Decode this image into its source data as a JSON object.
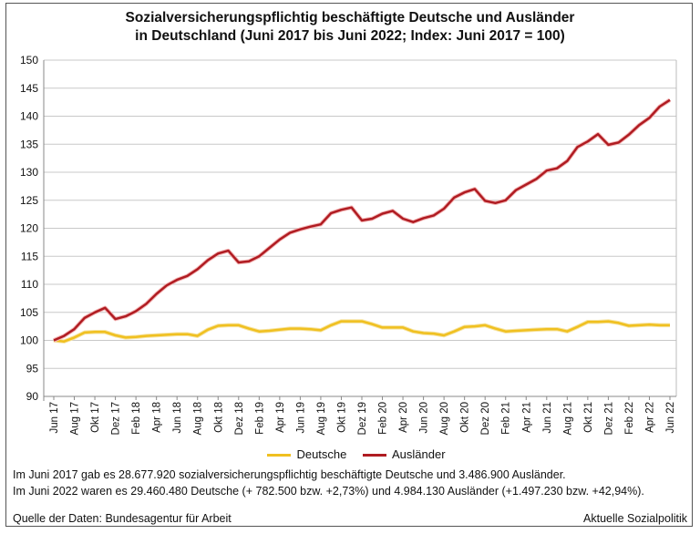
{
  "chart_data": {
    "type": "line",
    "title": "Sozialversicherungspflichtig beschäftigte Deutsche und Ausländer",
    "subtitle": "in Deutschland (Juni 2017 bis Juni 2022; Index: Juni 2017 = 100)",
    "ylim": [
      90,
      150
    ],
    "yticks": [
      90,
      95,
      100,
      105,
      110,
      115,
      120,
      125,
      130,
      135,
      140,
      145,
      150
    ],
    "grid": true,
    "legend": "bottom",
    "xtick_labels": [
      "Jun 17",
      "Aug 17",
      "Okt 17",
      "Dez 17",
      "Feb 18",
      "Apr 18",
      "Jun 18",
      "Aug 18",
      "Okt 18",
      "Dez 18",
      "Feb 19",
      "Apr 19",
      "Jun 19",
      "Aug 19",
      "Okt 19",
      "Dez 19",
      "Feb 20",
      "Apr 20",
      "Jun 20",
      "Aug 20",
      "Okt 20",
      "Dez 20",
      "Feb 21",
      "Apr 21",
      "Jun 21",
      "Aug 21",
      "Okt 21",
      "Dez 21",
      "Feb 22",
      "Apr 22",
      "Jun 22"
    ],
    "x_range": [
      "Jun 2017",
      "Jun 2022"
    ],
    "x_frequency": "monthly",
    "series": [
      {
        "name": "Deutsche",
        "color": "#f0c020",
        "values": [
          100,
          99.8,
          100.5,
          101.4,
          101.5,
          101.5,
          100.9,
          100.5,
          100.6,
          100.8,
          100.9,
          101,
          101.1,
          101.1,
          100.8,
          101.9,
          102.6,
          102.7,
          102.7,
          102.1,
          101.6,
          101.7,
          101.9,
          102.1,
          102.1,
          102,
          101.8,
          102.7,
          103.4,
          103.4,
          103.4,
          102.9,
          102.3,
          102.3,
          102.3,
          101.6,
          101.3,
          101.2,
          100.9,
          101.6,
          102.4,
          102.5,
          102.7,
          102.1,
          101.6,
          101.7,
          101.8,
          101.9,
          102,
          102,
          101.6,
          102.4,
          103.3,
          103.3,
          103.4,
          103.1,
          102.6,
          102.7,
          102.8,
          102.7,
          102.7
        ]
      },
      {
        "name": "Ausländer",
        "color": "#b01c22",
        "values": [
          100,
          100.8,
          102,
          104,
          105,
          105.8,
          103.8,
          104.3,
          105.2,
          106.5,
          108.3,
          109.8,
          110.8,
          111.5,
          112.7,
          114.3,
          115.5,
          116,
          113.9,
          114.1,
          115,
          116.5,
          118,
          119.2,
          119.8,
          120.3,
          120.7,
          122.7,
          123.3,
          123.7,
          121.4,
          121.7,
          122.6,
          123.1,
          121.7,
          121.1,
          121.8,
          122.3,
          123.5,
          125.5,
          126.4,
          127,
          124.9,
          124.5,
          125,
          126.8,
          127.8,
          128.8,
          130.3,
          130.7,
          132,
          134.5,
          135.5,
          136.8,
          134.9,
          135.3,
          136.7,
          138.4,
          139.7,
          141.7,
          142.9
        ]
      }
    ]
  },
  "notes": {
    "line1": "Im Juni 2017 gab es 28.677.920 sozialversicherungspflichtig beschäftigte Deutsche und 3.486.900 Ausländer.",
    "line2": "Im Juni 2022 waren es 29.460.480 Deutsche (+ 782.500 bzw. +2,73%) und 4.984.130 Ausländer (+1.497.230 bzw. +42,94%)."
  },
  "source": "Quelle der Daten: Bundesagentur für Arbeit",
  "publisher": "Aktuelle Sozialpolitik"
}
